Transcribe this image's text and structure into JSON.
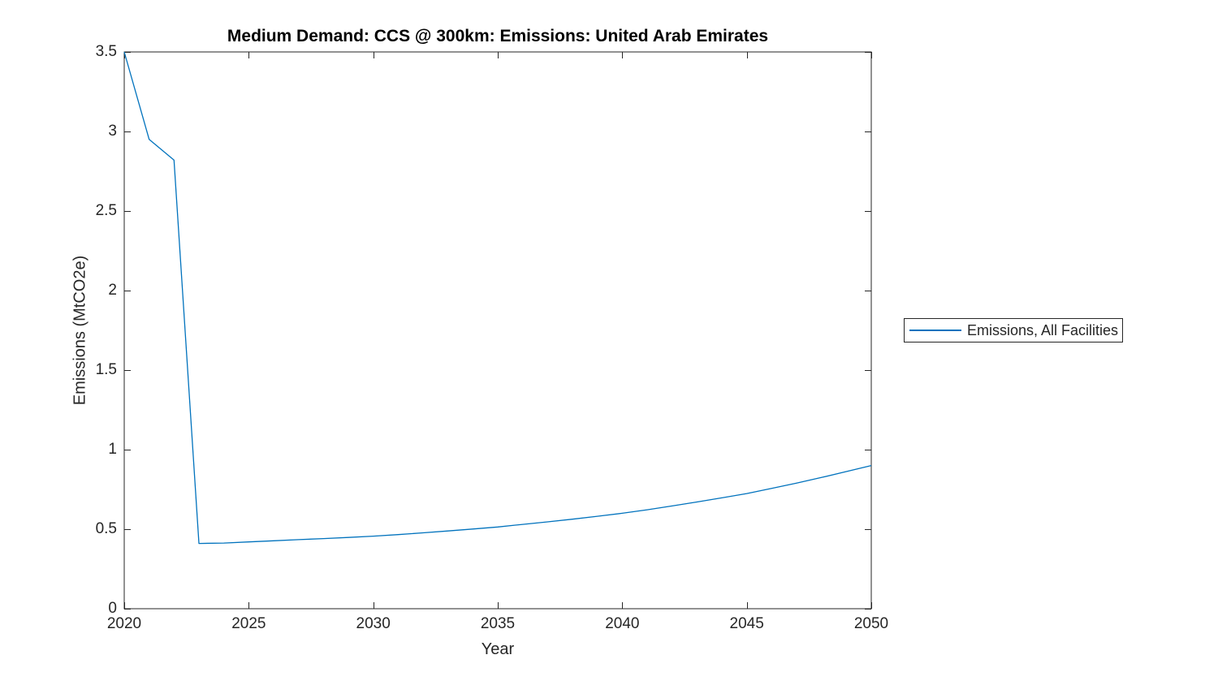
{
  "figure": {
    "title": "Medium Demand: CCS @ 300km: Emissions: United Arab Emirates",
    "legend": {
      "label": "Emissions, All Facilities",
      "position": "outside-right"
    }
  },
  "colors": {
    "series_line": "#0072BD",
    "axis": "#262626",
    "title_text": "#000000",
    "background": "#ffffff"
  },
  "chart_data": {
    "type": "line",
    "title": "Medium Demand: CCS @ 300km: Emissions: United Arab Emirates",
    "xlabel": "Year",
    "ylabel": "Emissions (MtCO2e)",
    "xlim": [
      2020,
      2050
    ],
    "ylim": [
      0,
      3.5
    ],
    "xticks": [
      2020,
      2025,
      2030,
      2035,
      2040,
      2045,
      2050
    ],
    "yticks": [
      0,
      0.5,
      1,
      1.5,
      2,
      2.5,
      3,
      3.5
    ],
    "grid": false,
    "box": true,
    "legend_position": "outside-right",
    "x": [
      2020,
      2021,
      2022,
      2023,
      2024,
      2025,
      2026,
      2027,
      2028,
      2029,
      2030,
      2031,
      2032,
      2033,
      2034,
      2035,
      2036,
      2037,
      2038,
      2039,
      2040,
      2041,
      2042,
      2043,
      2044,
      2045,
      2046,
      2047,
      2048,
      2049,
      2050
    ],
    "series": [
      {
        "name": "Emissions, All Facilities",
        "color": "#0072BD",
        "values": [
          3.5,
          2.95,
          2.82,
          0.41,
          0.413,
          0.42,
          0.427,
          0.434,
          0.441,
          0.448,
          0.456,
          0.466,
          0.477,
          0.489,
          0.501,
          0.514,
          0.53,
          0.546,
          0.563,
          0.581,
          0.6,
          0.622,
          0.646,
          0.671,
          0.697,
          0.724,
          0.756,
          0.79,
          0.825,
          0.862,
          0.9
        ]
      }
    ]
  }
}
